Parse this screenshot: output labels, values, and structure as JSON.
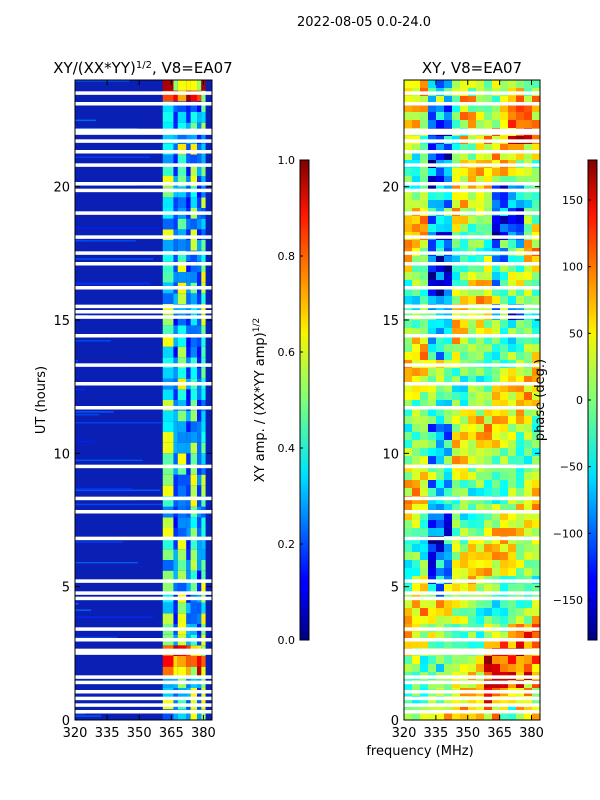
{
  "figure": {
    "suptitle": "2022-08-05 0.0-24.0",
    "xlabel": "frequency (MHz)"
  },
  "chart_data": [
    {
      "type": "heatmap",
      "title_main": "XY/(XX*YY)",
      "title_sup": "1/2",
      "title_tail": ", V8=EA07",
      "xlabel": "",
      "ylabel": "UT (hours)",
      "xlim": [
        320,
        384
      ],
      "ylim": [
        0,
        24
      ],
      "xticks": [
        320,
        335,
        350,
        365,
        380
      ],
      "yticks": [
        0,
        5,
        10,
        15,
        20
      ],
      "band_edges_mhz": [
        361,
        366,
        368,
        372,
        374,
        377,
        379,
        381
      ],
      "gap_rows_ut": [
        0.3,
        0.55,
        0.8,
        1.05,
        1.4,
        1.6,
        2.5,
        2.6,
        3.0,
        3.4,
        4.55,
        4.75,
        5.2,
        6.8,
        7.8,
        8.3,
        9.5,
        11.7,
        12.6,
        13.3,
        14.4,
        15.1,
        15.3,
        15.5,
        16.2,
        17.1,
        17.5,
        18.1,
        19.0,
        19.85,
        20.1,
        20.8,
        21.3,
        21.7,
        22.0,
        22.1,
        23.1,
        23.5
      ],
      "colorbar": {
        "label_main": "XY amp. / (XX*YY amp)",
        "label_sup": "1/2",
        "range": [
          0.0,
          1.0
        ],
        "ticks": [
          "0.0",
          "0.2",
          "0.4",
          "0.6",
          "0.8",
          "1.0"
        ],
        "colormap": "jet"
      }
    },
    {
      "type": "heatmap",
      "title": "XY, V8=EA07",
      "xlabel": "frequency (MHz)",
      "ylabel": "",
      "xlim": [
        320,
        384
      ],
      "ylim": [
        0,
        24
      ],
      "xticks": [
        320,
        335,
        350,
        365,
        380
      ],
      "yticks": [
        0,
        5,
        10,
        15,
        20
      ],
      "gap_rows_ut": [
        0.3,
        0.55,
        0.8,
        1.05,
        1.4,
        1.6,
        2.5,
        2.6,
        3.0,
        3.4,
        4.55,
        4.75,
        5.2,
        6.8,
        7.8,
        8.3,
        9.5,
        11.7,
        12.6,
        13.3,
        14.4,
        15.1,
        15.3,
        15.5,
        16.2,
        17.1,
        17.5,
        18.1,
        19.0,
        19.85,
        20.1,
        20.8,
        21.3,
        21.7,
        22.0,
        22.1,
        23.1,
        23.5
      ],
      "colorbar": {
        "label": "phase (deg.)",
        "range": [
          -180,
          180
        ],
        "ticks": [
          "−150",
          "−100",
          "−50",
          "0",
          "50",
          "100",
          "150"
        ],
        "tick_values": [
          -150,
          -100,
          -50,
          0,
          50,
          100,
          150
        ],
        "colormap": "jet"
      }
    }
  ]
}
